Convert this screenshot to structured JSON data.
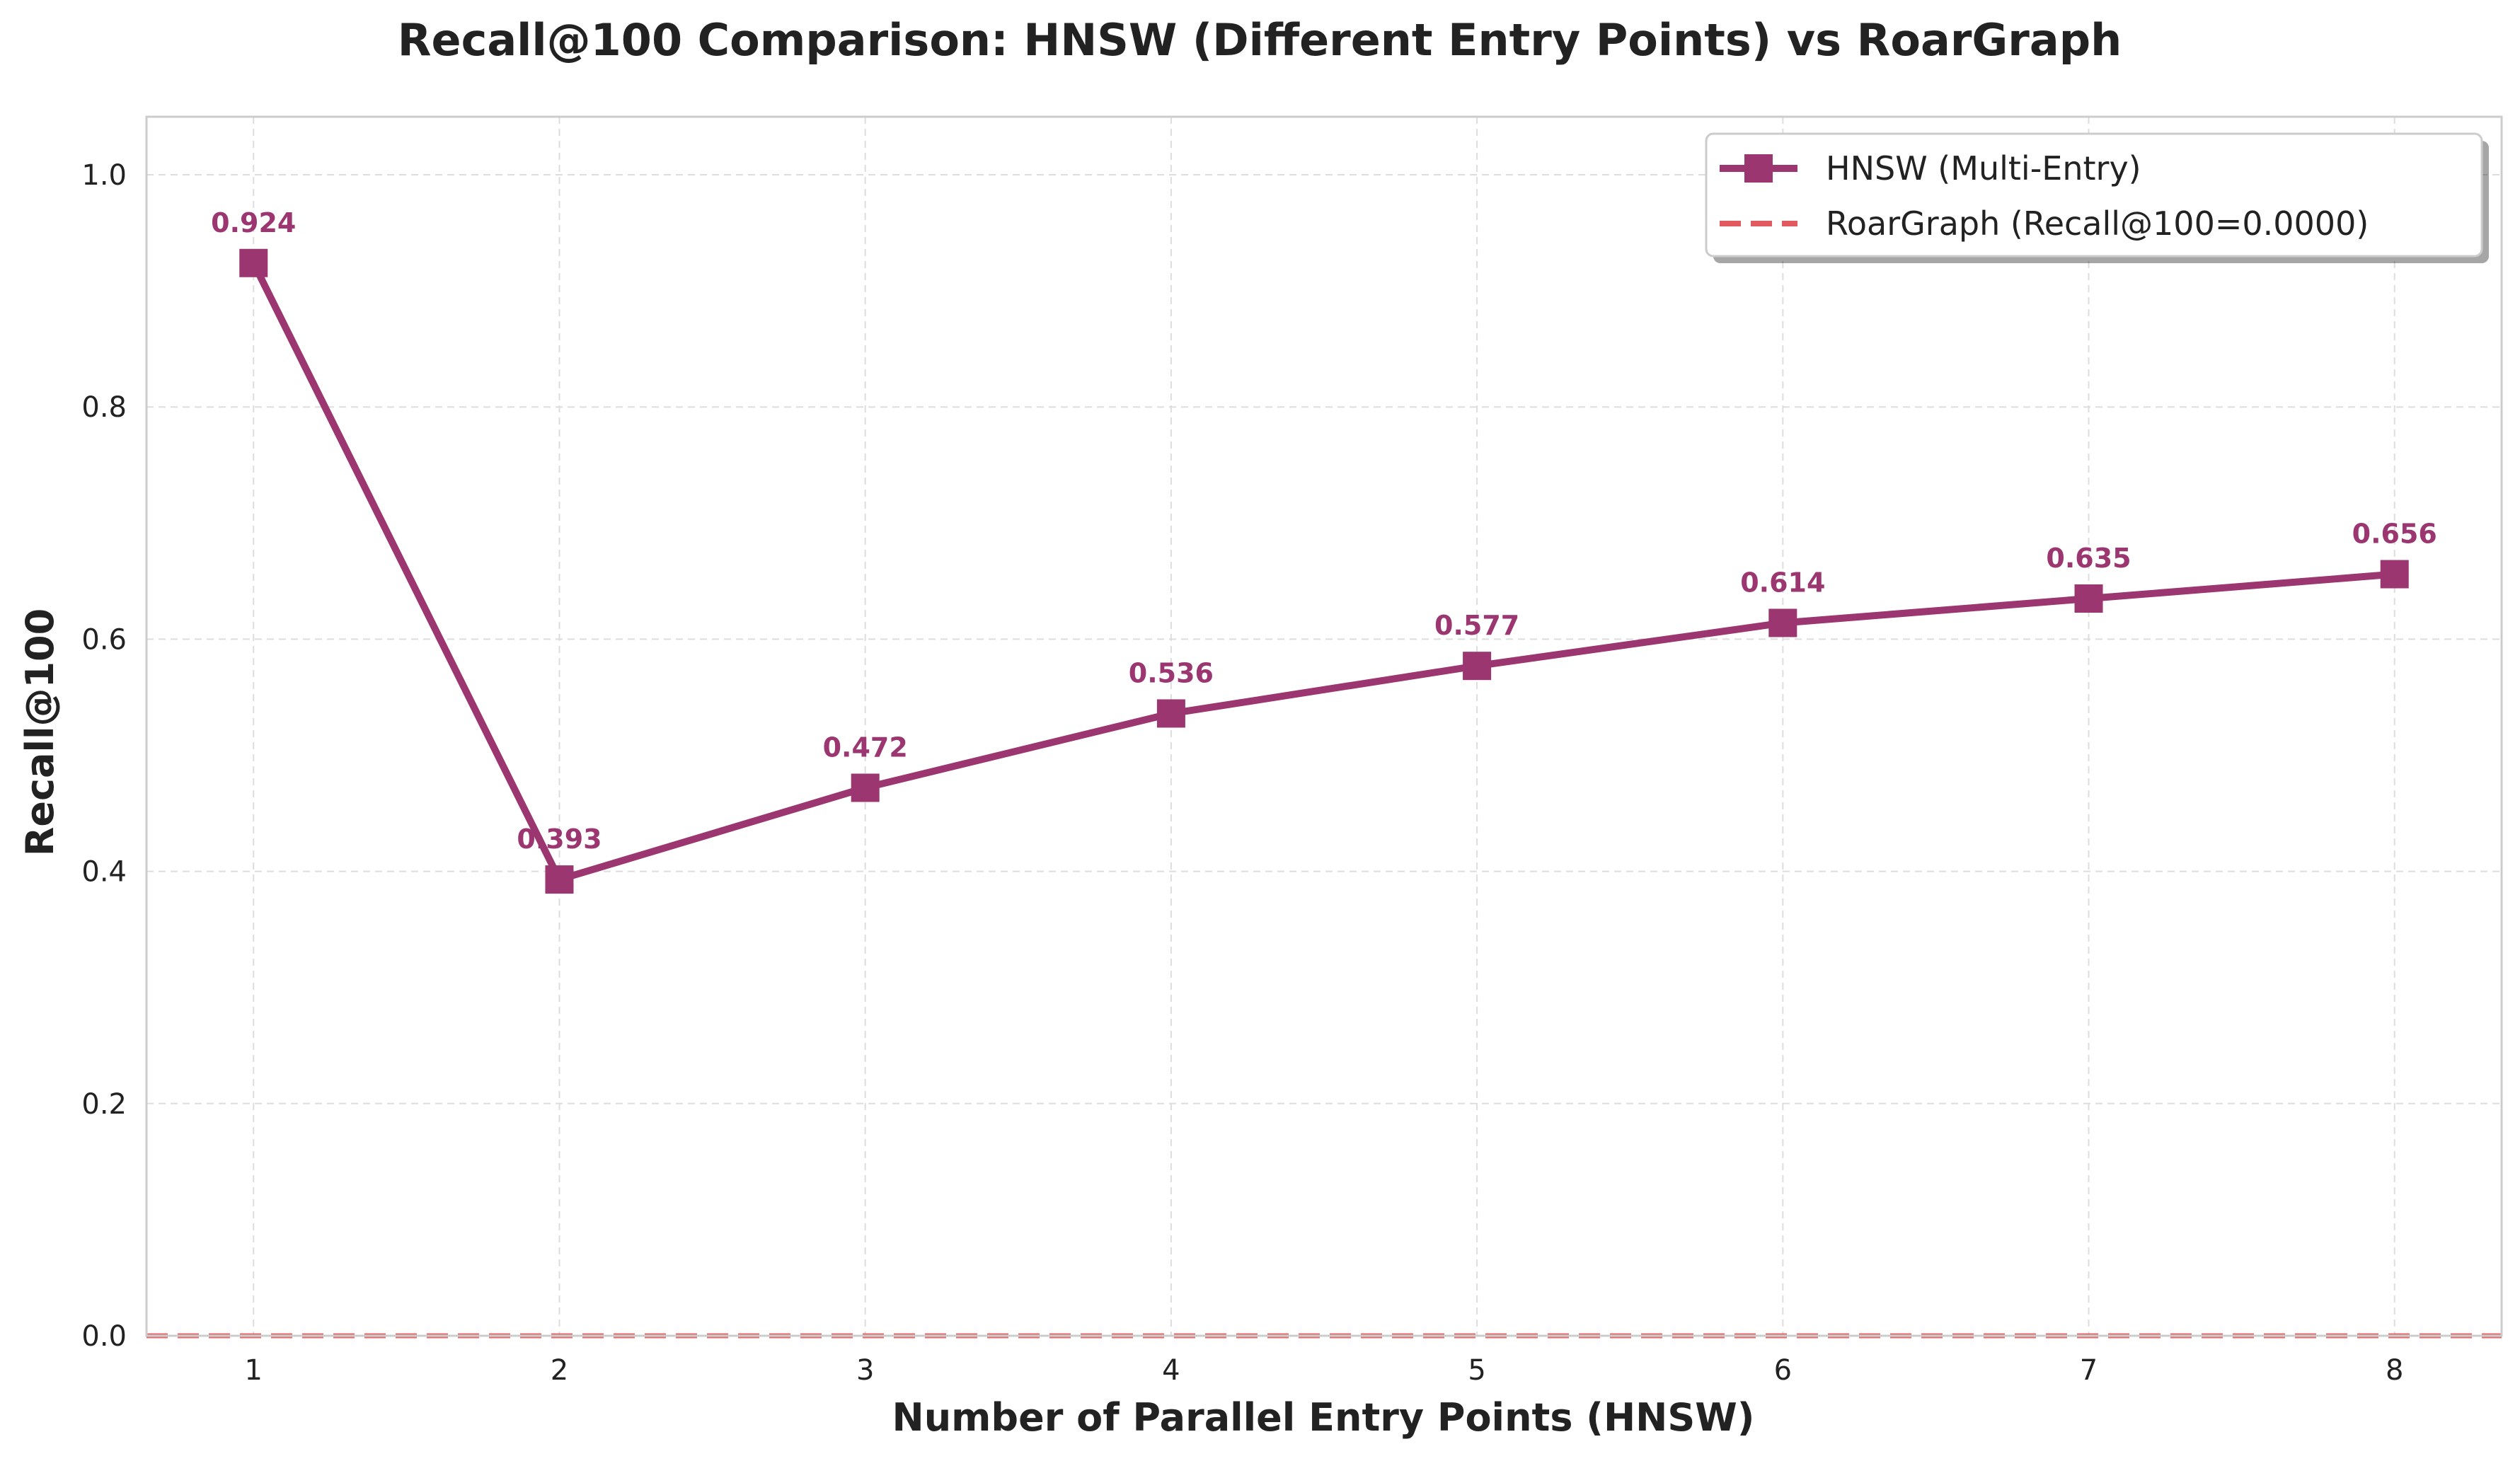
{
  "chart_data": {
    "type": "line",
    "title": "Recall@100 Comparison: HNSW (Different Entry Points) vs RoarGraph",
    "xlabel": "Number of Parallel Entry Points (HNSW)",
    "ylabel": "Recall@100",
    "x": [
      1,
      2,
      3,
      4,
      5,
      6,
      7,
      8
    ],
    "xlim": [
      0.65,
      8.35
    ],
    "ylim": [
      0.0,
      1.05
    ],
    "x_ticks": [
      "1",
      "2",
      "3",
      "4",
      "5",
      "6",
      "7",
      "8"
    ],
    "y_ticks": [
      "0.0",
      "0.2",
      "0.4",
      "0.6",
      "0.8",
      "1.0"
    ],
    "y_tick_values": [
      0.0,
      0.2,
      0.4,
      0.6,
      0.8,
      1.0
    ],
    "grid": true,
    "legend_position": "top-right",
    "series": [
      {
        "name": "HNSW (Multi-Entry)",
        "style": "solid line with square markers",
        "color": "#9B3670",
        "values": [
          0.924,
          0.393,
          0.472,
          0.536,
          0.577,
          0.614,
          0.635,
          0.656
        ],
        "labels": [
          "0.924",
          "0.393",
          "0.472",
          "0.536",
          "0.577",
          "0.614",
          "0.635",
          "0.656"
        ]
      },
      {
        "name": "RoarGraph (Recall@100=0.0000)",
        "style": "dashed horizontal line",
        "color": "#E05A5F",
        "value": 0.0
      }
    ]
  }
}
